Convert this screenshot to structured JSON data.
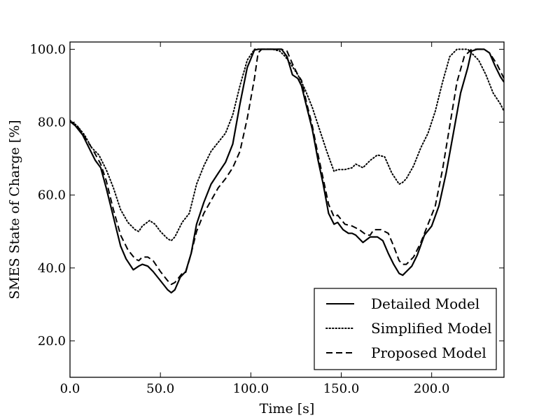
{
  "chart_data": {
    "type": "line",
    "title": "",
    "xlabel": "Time [s]",
    "ylabel": "SMES State of Charge [%]",
    "xlim": [
      0,
      240
    ],
    "ylim": [
      10,
      102
    ],
    "xticks": [
      0,
      50,
      100,
      150,
      200
    ],
    "xtick_labels": [
      "0.0",
      "50.0",
      "100.0",
      "150.0",
      "200.0"
    ],
    "yticks": [
      20,
      40,
      60,
      80,
      100
    ],
    "ytick_labels": [
      "20.0",
      "40.0",
      "60.0",
      "80.0",
      "100.0"
    ],
    "grid": false,
    "legend_position": "bottom-right",
    "series": [
      {
        "name": "Detailed Model",
        "style": "solid",
        "color": "#000000",
        "x": [
          0,
          3,
          7,
          10,
          14,
          17,
          20,
          24,
          28,
          31,
          35,
          38,
          40,
          43,
          46,
          50,
          54,
          56,
          58,
          61,
          64,
          67,
          70,
          74,
          78,
          82,
          86,
          90,
          94,
          98,
          102,
          104,
          106,
          110,
          114,
          117,
          120,
          123,
          126,
          128,
          131,
          134,
          137,
          140,
          143,
          146,
          148,
          151,
          154,
          156,
          158,
          162,
          166,
          168,
          170,
          173,
          176,
          179,
          182,
          184,
          186,
          189,
          192,
          196,
          200,
          204,
          208,
          212,
          216,
          220,
          222,
          225,
          229,
          232,
          235,
          238,
          240
        ],
        "y": [
          80.2,
          79.0,
          76.5,
          73.5,
          69.5,
          67.5,
          62,
          54,
          46,
          42.5,
          39.5,
          40.5,
          41,
          40.5,
          39,
          36.5,
          34,
          33.2,
          34,
          37.5,
          39,
          44,
          52,
          58,
          63,
          66,
          69,
          74,
          85,
          95,
          99.8,
          100,
          100,
          100,
          100,
          100,
          98,
          93,
          92,
          90,
          84,
          78,
          70,
          63,
          55,
          52,
          52.5,
          50.5,
          49.5,
          49.5,
          49,
          47,
          48.5,
          48.5,
          48.5,
          47.5,
          44,
          41,
          38.5,
          38,
          39,
          40.5,
          43.5,
          49,
          51.5,
          57,
          66,
          77,
          88,
          95,
          99.5,
          100,
          100,
          99,
          95.5,
          92.5,
          91
        ]
      },
      {
        "name": "Simplified Model",
        "style": "dotted",
        "color": "#000000",
        "x": [
          0,
          4,
          8,
          12,
          16,
          20,
          24,
          28,
          32,
          36,
          38,
          40,
          44,
          47,
          50,
          54,
          56,
          58,
          62,
          66,
          70,
          74,
          78,
          82,
          86,
          90,
          94,
          98,
          102,
          104,
          108,
          112,
          116,
          119,
          122,
          126,
          130,
          134,
          138,
          142,
          146,
          148,
          152,
          156,
          158,
          162,
          166,
          170,
          174,
          178,
          182,
          184,
          186,
          190,
          194,
          198,
          202,
          206,
          210,
          214,
          216,
          220,
          222,
          226,
          230,
          234,
          238,
          240
        ],
        "y": [
          80.5,
          79,
          76.5,
          73,
          71,
          67,
          62,
          56,
          52.5,
          50.5,
          50,
          51.5,
          53,
          52,
          50,
          48,
          47.5,
          48.5,
          52.5,
          55,
          63,
          68,
          72,
          74.5,
          77,
          82,
          90,
          97,
          100,
          100,
          100,
          100,
          99.5,
          98,
          96,
          93,
          89,
          84,
          78,
          72,
          66.5,
          67,
          67,
          67.5,
          68.5,
          67.5,
          69.5,
          71,
          70.5,
          66,
          63,
          63.5,
          64.5,
          68,
          73,
          77,
          83,
          91,
          98,
          100,
          100,
          100,
          99,
          97,
          93,
          88,
          85,
          83
        ]
      },
      {
        "name": "Proposed Model",
        "style": "dashed",
        "color": "#000000",
        "x": [
          0,
          4,
          8,
          12,
          17,
          20,
          24,
          28,
          32,
          36,
          38,
          40,
          43,
          46,
          50,
          54,
          56,
          58,
          62,
          64,
          67,
          70,
          74,
          78,
          82,
          86,
          90,
          94,
          98,
          102,
          104,
          106,
          110,
          114,
          117,
          120,
          123,
          126,
          128,
          131,
          134,
          137,
          140,
          143,
          146,
          148,
          152,
          156,
          160,
          164,
          166,
          168,
          172,
          176,
          179,
          182,
          184,
          186,
          190,
          194,
          198,
          202,
          206,
          210,
          214,
          218,
          222,
          225,
          229,
          232,
          236,
          240
        ],
        "y": [
          80.3,
          79,
          76,
          73,
          68.5,
          64,
          56,
          49,
          45,
          42.5,
          42,
          43,
          43,
          42,
          39,
          36.5,
          35.5,
          36,
          38.5,
          38.8,
          44,
          50,
          55,
          58.5,
          62,
          64.5,
          67.5,
          72,
          81,
          92,
          99,
          100,
          100,
          100,
          100,
          99.5,
          96,
          93,
          91.5,
          85,
          79,
          71.5,
          64.5,
          57.5,
          54,
          54.5,
          52,
          51.5,
          50.5,
          49,
          49,
          50.5,
          50.5,
          49.5,
          46,
          42,
          41,
          41,
          43,
          47,
          52,
          57,
          67,
          79,
          91,
          98,
          100,
          100,
          100,
          99,
          96,
          92
        ]
      }
    ]
  }
}
